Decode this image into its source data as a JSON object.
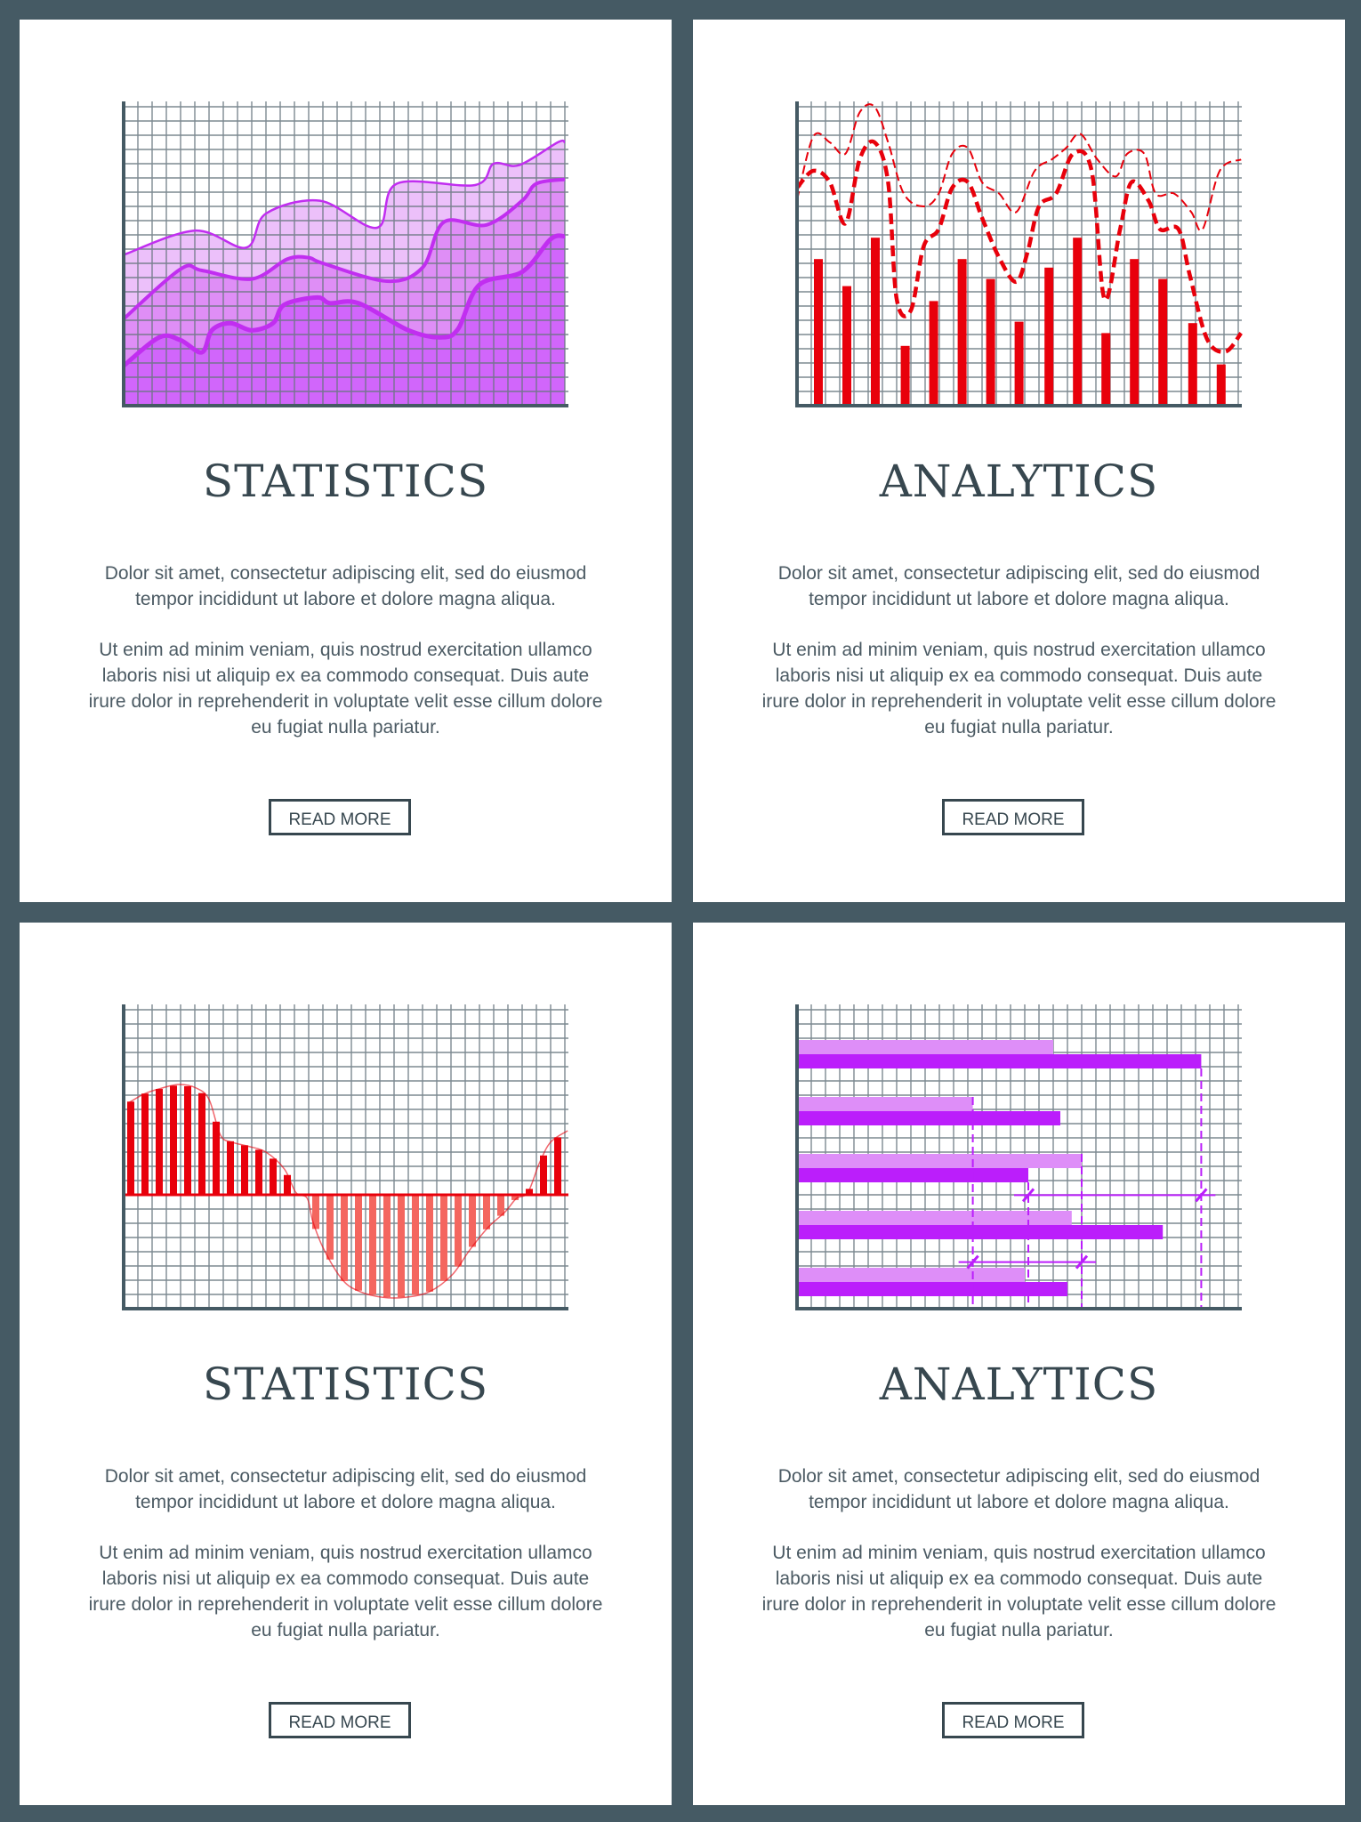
{
  "colors": {
    "background": "#455a64",
    "text": "#37474f",
    "grid": "#67767e",
    "purple_light": "#ecc0fa",
    "purple_mid": "#df8ef6",
    "purple_dark": "#d166fb",
    "purple_line": "#c12ef0",
    "red": "#e8000b",
    "red_light": "#f4665f",
    "bar_purple": "#bb1efb",
    "bar_purple_light": "#de8ef8"
  },
  "cards": [
    {
      "title": "STATISTICS",
      "para1": [
        "Dolor sit amet, consectetur adipiscing elit, sed do eiusmod",
        "tempor incididunt ut labore et dolore magna aliqua."
      ],
      "para2": [
        "Ut enim ad minim veniam, quis nostrud exercitation ullamco",
        "laboris nisi ut aliquip ex ea commodo consequat. Duis aute",
        "irure dolor in reprehenderit in voluptate velit esse cillum dolore",
        "eu fugiat nulla pariatur."
      ],
      "button": "READ MORE"
    },
    {
      "title": "ANALYTICS",
      "para1": [
        "Dolor sit amet, consectetur adipiscing elit, sed do eiusmod",
        "tempor incididunt ut labore et dolore magna aliqua."
      ],
      "para2": [
        "Ut enim ad minim veniam, quis nostrud exercitation ullamco",
        "laboris nisi ut aliquip ex ea commodo consequat. Duis aute",
        "irure dolor in reprehenderit in voluptate velit esse cillum dolore",
        "eu fugiat nulla pariatur."
      ],
      "button": "READ MORE"
    },
    {
      "title": "STATISTICS",
      "para1": [
        "Dolor sit amet, consectetur adipiscing elit, sed do eiusmod",
        "tempor incididunt ut labore et dolore magna aliqua."
      ],
      "para2": [
        "Ut enim ad minim veniam, quis nostrud exercitation ullamco",
        "laboris nisi ut aliquip ex ea commodo consequat. Duis aute",
        "irure dolor in reprehenderit in voluptate velit esse cillum dolore",
        "eu fugiat nulla pariatur."
      ],
      "button": "READ MORE"
    },
    {
      "title": "ANALYTICS",
      "para1": [
        "Dolor sit amet, consectetur adipiscing elit, sed do eiusmod",
        "tempor incididunt ut labore et dolore magna aliqua."
      ],
      "para2": [
        "Ut enim ad minim veniam, quis nostrud exercitation ullamco",
        "laboris nisi ut aliquip ex ea commodo consequat. Duis aute",
        "irure dolor in reprehenderit in voluptate velit esse cillum dolore",
        "eu fugiat nulla pariatur."
      ],
      "button": "READ MORE"
    }
  ],
  "chart_data": [
    {
      "type": "area",
      "grid": true,
      "xlim": [
        0,
        31
      ],
      "ylim": [
        0,
        21.5
      ],
      "series": [
        {
          "x": [
            0,
            5,
            8.6,
            10,
            13.8,
            17.8,
            19.2,
            24.7,
            26,
            27.8,
            30.5,
            31
          ],
          "y": [
            10.6,
            12.3,
            11.1,
            13.5,
            14.4,
            12.5,
            15.6,
            15.5,
            17,
            16.9,
            18.5,
            18.5
          ]
        },
        {
          "x": [
            0,
            4,
            5.5,
            9,
            11.5,
            13,
            14,
            18.5,
            21,
            22.5,
            25.5,
            28,
            29,
            31
          ],
          "y": [
            6.1,
            9.6,
            9.5,
            8.9,
            10.3,
            10.4,
            10,
            8.75,
            9.7,
            12.9,
            12.7,
            14.4,
            15.6,
            15.9
          ]
        },
        {
          "x": [
            0,
            2.5,
            4,
            5.5,
            6.2,
            7.5,
            9,
            10.5,
            11.3,
            13.6,
            14.5,
            16.5,
            20,
            22.3,
            23.5,
            25,
            28,
            30,
            31
          ],
          "y": [
            2.8,
            4.8,
            4.6,
            3.75,
            5.3,
            5.8,
            5.3,
            5.8,
            7.1,
            7.6,
            7.2,
            7.2,
            5.3,
            4.8,
            5.4,
            8.5,
            9.4,
            11.7,
            11.9
          ]
        }
      ]
    },
    {
      "type": "bar+line",
      "grid": true,
      "xlim": [
        0,
        31
      ],
      "ylim": [
        0,
        21.5
      ],
      "bars": {
        "x": [
          1.5,
          3.5,
          5.5,
          7.6,
          9.6,
          11.6,
          13.6,
          15.6,
          17.7,
          19.7,
          21.7,
          23.7,
          25.7,
          27.8,
          29.8
        ],
        "values": [
          10.3,
          8.4,
          11.8,
          4.2,
          7.35,
          10.3,
          8.9,
          5.9,
          9.7,
          11.8,
          5.1,
          10.3,
          8.9,
          5.8,
          2.9
        ]
      },
      "series": [
        {
          "style": "dashed-thin",
          "x": [
            0,
            1.14,
            2.3,
            3.4,
            4.4,
            5.45,
            6.4,
            7.5,
            8.9,
            9.95,
            10.9,
            12,
            13,
            14.2,
            15.4,
            16.7,
            17.9,
            18.9,
            19.9,
            21.1,
            22.4,
            23.2,
            24.4,
            25.2,
            26.5,
            27.7,
            28.5,
            29.7,
            31.2
          ],
          "y": [
            14.45,
            18.9,
            18.5,
            17.7,
            20.6,
            21,
            18.5,
            14.9,
            14,
            14.9,
            17.7,
            18.1,
            15.7,
            14.9,
            13.6,
            16.5,
            17.3,
            18.1,
            19.1,
            17.3,
            16.1,
            17.7,
            17.7,
            14.9,
            14.9,
            13.6,
            12.4,
            16.5,
            17.3
          ]
        },
        {
          "style": "dashed-thick",
          "x": [
            0,
            1.14,
            2.3,
            3.4,
            4.4,
            5.45,
            6.4,
            7,
            8,
            8.9,
            9.95,
            10.9,
            12,
            13,
            14.2,
            15.4,
            16.2,
            17,
            18.2,
            19.4,
            20.7,
            21.6,
            22.7,
            23.5,
            24.7,
            25.5,
            26.8,
            27.6,
            28.8,
            30.1,
            31.2
          ],
          "y": [
            15.3,
            16.5,
            15.7,
            12.8,
            17.3,
            18.5,
            15.7,
            7.5,
            6.7,
            11.2,
            12.4,
            15.3,
            15.7,
            13.2,
            10.4,
            8.7,
            10.8,
            14,
            14.9,
            17.7,
            16.5,
            7.5,
            12.4,
            15.7,
            14.4,
            12.4,
            12.4,
            9.15,
            4.7,
            3.8,
            5.1
          ]
        }
      ]
    },
    {
      "type": "bar",
      "grid": true,
      "xlim": [
        0,
        31
      ],
      "ylim": [
        -8,
        8
      ],
      "baseline": 0,
      "curve": {
        "x": [
          0.33,
          1.47,
          2.7,
          3.9,
          5.1,
          6,
          6.8,
          7.6,
          8.8,
          10,
          11.3,
          12.1,
          12.9,
          13.3,
          14.1,
          15.4,
          16.6,
          18.2,
          19.8,
          21.5,
          23.1,
          24.3,
          25.6,
          26.8,
          27.6,
          28.4,
          29.2,
          30,
          31.2
        ],
        "y": [
          6.45,
          7.1,
          7.5,
          7.75,
          7.5,
          6.7,
          4.2,
          3.7,
          3.4,
          3,
          1.8,
          0.16,
          -0.25,
          -1.9,
          -3.9,
          -6,
          -6.8,
          -7.2,
          -7.2,
          -6.8,
          -5.6,
          -3.9,
          -2.3,
          -1.2,
          -0.25,
          0.16,
          2.2,
          3.7,
          4.5
        ]
      }
    },
    {
      "type": "horizontal-bar",
      "grid": true,
      "xlim": [
        0,
        31
      ],
      "series": [
        {
          "values": [
            18,
            12.35,
            20,
            19.3,
            16
          ]
        },
        {
          "values": [
            28.4,
            18.5,
            16.25,
            25.7,
            19
          ]
        }
      ],
      "markers": [
        {
          "from": 16.25,
          "to": 28.4
        },
        {
          "from": 12.35,
          "to": 20
        }
      ]
    }
  ]
}
